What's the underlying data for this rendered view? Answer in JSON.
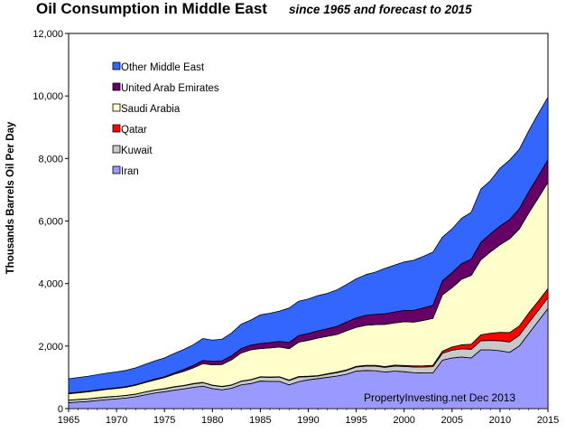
{
  "chart_data": {
    "type": "area",
    "stacked": true,
    "title": "Oil Consumption in Middle East",
    "subtitle": "since 1965  and forecast  to 2015",
    "ylabel": "Thousands Barrels Oil Per Day",
    "xlabel": "",
    "xlim": [
      1965,
      2015
    ],
    "ylim": [
      0,
      12000
    ],
    "x_ticks": [
      1965,
      1970,
      1975,
      1980,
      1985,
      1990,
      1995,
      2000,
      2005,
      2010,
      2015
    ],
    "y_ticks": [
      0,
      2000,
      4000,
      6000,
      8000,
      10000,
      12000
    ],
    "y_tick_labels": [
      "0",
      "2,000",
      "4,000",
      "6,000",
      "8,000",
      "10,000",
      "12,000"
    ],
    "grid": false,
    "legend_position": "top-left inside",
    "annotation": "PropertyInvesting.net  Dec 2013",
    "x": [
      1965,
      1966,
      1967,
      1968,
      1969,
      1970,
      1971,
      1972,
      1973,
      1974,
      1975,
      1976,
      1977,
      1978,
      1979,
      1980,
      1981,
      1982,
      1983,
      1984,
      1985,
      1986,
      1987,
      1988,
      1989,
      1990,
      1991,
      1992,
      1993,
      1994,
      1995,
      1996,
      1997,
      1998,
      1999,
      2000,
      2001,
      2002,
      2003,
      2004,
      2005,
      2006,
      2007,
      2008,
      2009,
      2010,
      2011,
      2012,
      2013,
      2014,
      2015
    ],
    "series": [
      {
        "name": "Iran",
        "color": "#9999ff",
        "values": [
          190,
          210,
          230,
          260,
          290,
          310,
          340,
          380,
          440,
          500,
          540,
          590,
          630,
          680,
          720,
          640,
          600,
          650,
          760,
          800,
          880,
          870,
          870,
          760,
          860,
          920,
          960,
          1000,
          1040,
          1100,
          1200,
          1220,
          1210,
          1170,
          1200,
          1180,
          1150,
          1140,
          1140,
          1550,
          1620,
          1650,
          1620,
          1880,
          1880,
          1850,
          1800,
          2000,
          2400,
          2800,
          3200
        ]
      },
      {
        "name": "Kuwait",
        "color": "#c8c8c8",
        "values": [
          80,
          80,
          80,
          80,
          80,
          80,
          80,
          80,
          90,
          90,
          90,
          100,
          100,
          110,
          110,
          100,
          100,
          100,
          110,
          120,
          130,
          130,
          140,
          140,
          150,
          100,
          80,
          100,
          110,
          120,
          130,
          140,
          150,
          150,
          160,
          170,
          180,
          190,
          200,
          220,
          250,
          260,
          280,
          290,
          300,
          320,
          330,
          340,
          350,
          340,
          350
        ]
      },
      {
        "name": "Qatar",
        "color": "#ff0000",
        "values": [
          5,
          5,
          5,
          5,
          5,
          5,
          5,
          5,
          5,
          5,
          10,
          10,
          10,
          10,
          10,
          10,
          10,
          10,
          10,
          10,
          10,
          10,
          10,
          15,
          15,
          15,
          15,
          15,
          20,
          20,
          20,
          25,
          25,
          25,
          30,
          30,
          35,
          40,
          45,
          70,
          100,
          130,
          160,
          190,
          230,
          270,
          300,
          300,
          310,
          300,
          290
        ]
      },
      {
        "name": "Saudi Arabia",
        "color": "#ffffcc",
        "values": [
          200,
          210,
          220,
          230,
          240,
          250,
          260,
          280,
          300,
          320,
          350,
          400,
          450,
          500,
          600,
          650,
          700,
          800,
          900,
          950,
          900,
          930,
          950,
          1000,
          1100,
          1150,
          1200,
          1200,
          1200,
          1250,
          1250,
          1280,
          1300,
          1350,
          1350,
          1400,
          1400,
          1450,
          1500,
          1800,
          1900,
          2100,
          2200,
          2400,
          2600,
          2800,
          3000,
          3100,
          3200,
          3300,
          3400
        ]
      },
      {
        "name": "United Arab Emirates",
        "color": "#660066",
        "values": [
          20,
          20,
          20,
          20,
          20,
          20,
          20,
          20,
          20,
          30,
          30,
          40,
          60,
          80,
          100,
          110,
          120,
          130,
          140,
          150,
          160,
          170,
          180,
          200,
          210,
          220,
          230,
          240,
          260,
          280,
          300,
          320,
          330,
          340,
          350,
          360,
          380,
          400,
          420,
          450,
          480,
          500,
          520,
          560,
          580,
          600,
          620,
          650,
          680,
          700,
          720
        ]
      },
      {
        "name": "Other Middle East",
        "color": "#3366ff",
        "values": [
          460,
          470,
          480,
          490,
          500,
          510,
          520,
          540,
          560,
          580,
          600,
          620,
          640,
          660,
          700,
          680,
          690,
          730,
          780,
          800,
          920,
          940,
          970,
          1100,
          1100,
          1100,
          1130,
          1130,
          1170,
          1200,
          1250,
          1300,
          1350,
          1450,
          1500,
          1550,
          1600,
          1650,
          1700,
          1400,
          1400,
          1450,
          1500,
          1700,
          1700,
          1850,
          1900,
          1900,
          1950,
          2000,
          2000
        ]
      }
    ]
  }
}
